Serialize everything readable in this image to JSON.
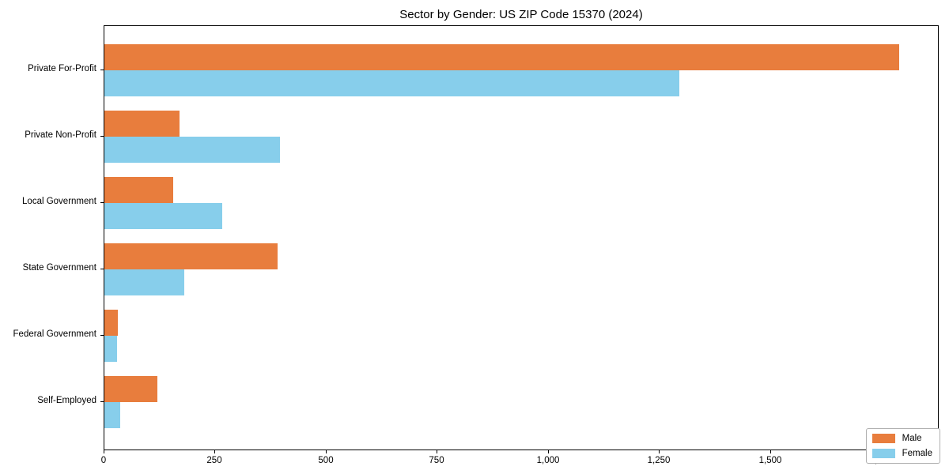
{
  "title": "Sector by Gender: US ZIP Code 15370 (2024)",
  "chart_data": {
    "type": "bar",
    "orientation": "horizontal",
    "title": "Sector by Gender: US ZIP Code 15370 (2024)",
    "categories": [
      "Private For-Profit",
      "Private Non-Profit",
      "Local Government",
      "State Government",
      "Federal Government",
      "Self-Employed"
    ],
    "series": [
      {
        "name": "Male",
        "color": "#e87d3d",
        "values": [
          1790,
          170,
          155,
          390,
          30,
          120
        ]
      },
      {
        "name": "Female",
        "color": "#87ceeb",
        "values": [
          1295,
          395,
          265,
          180,
          28,
          35
        ]
      }
    ],
    "xlabel": "",
    "ylabel": "",
    "xlim": [
      0,
      1880
    ],
    "x_ticks": [
      0,
      250,
      500,
      750,
      1000,
      1250,
      1500,
      1750
    ],
    "x_tick_labels": [
      "0",
      "250",
      "500",
      "750",
      "1,000",
      "1,250",
      "1,500",
      "1,750"
    ],
    "grid": false,
    "legend_position": "lower right"
  },
  "legend": {
    "male_label": "Male",
    "female_label": "Female"
  }
}
